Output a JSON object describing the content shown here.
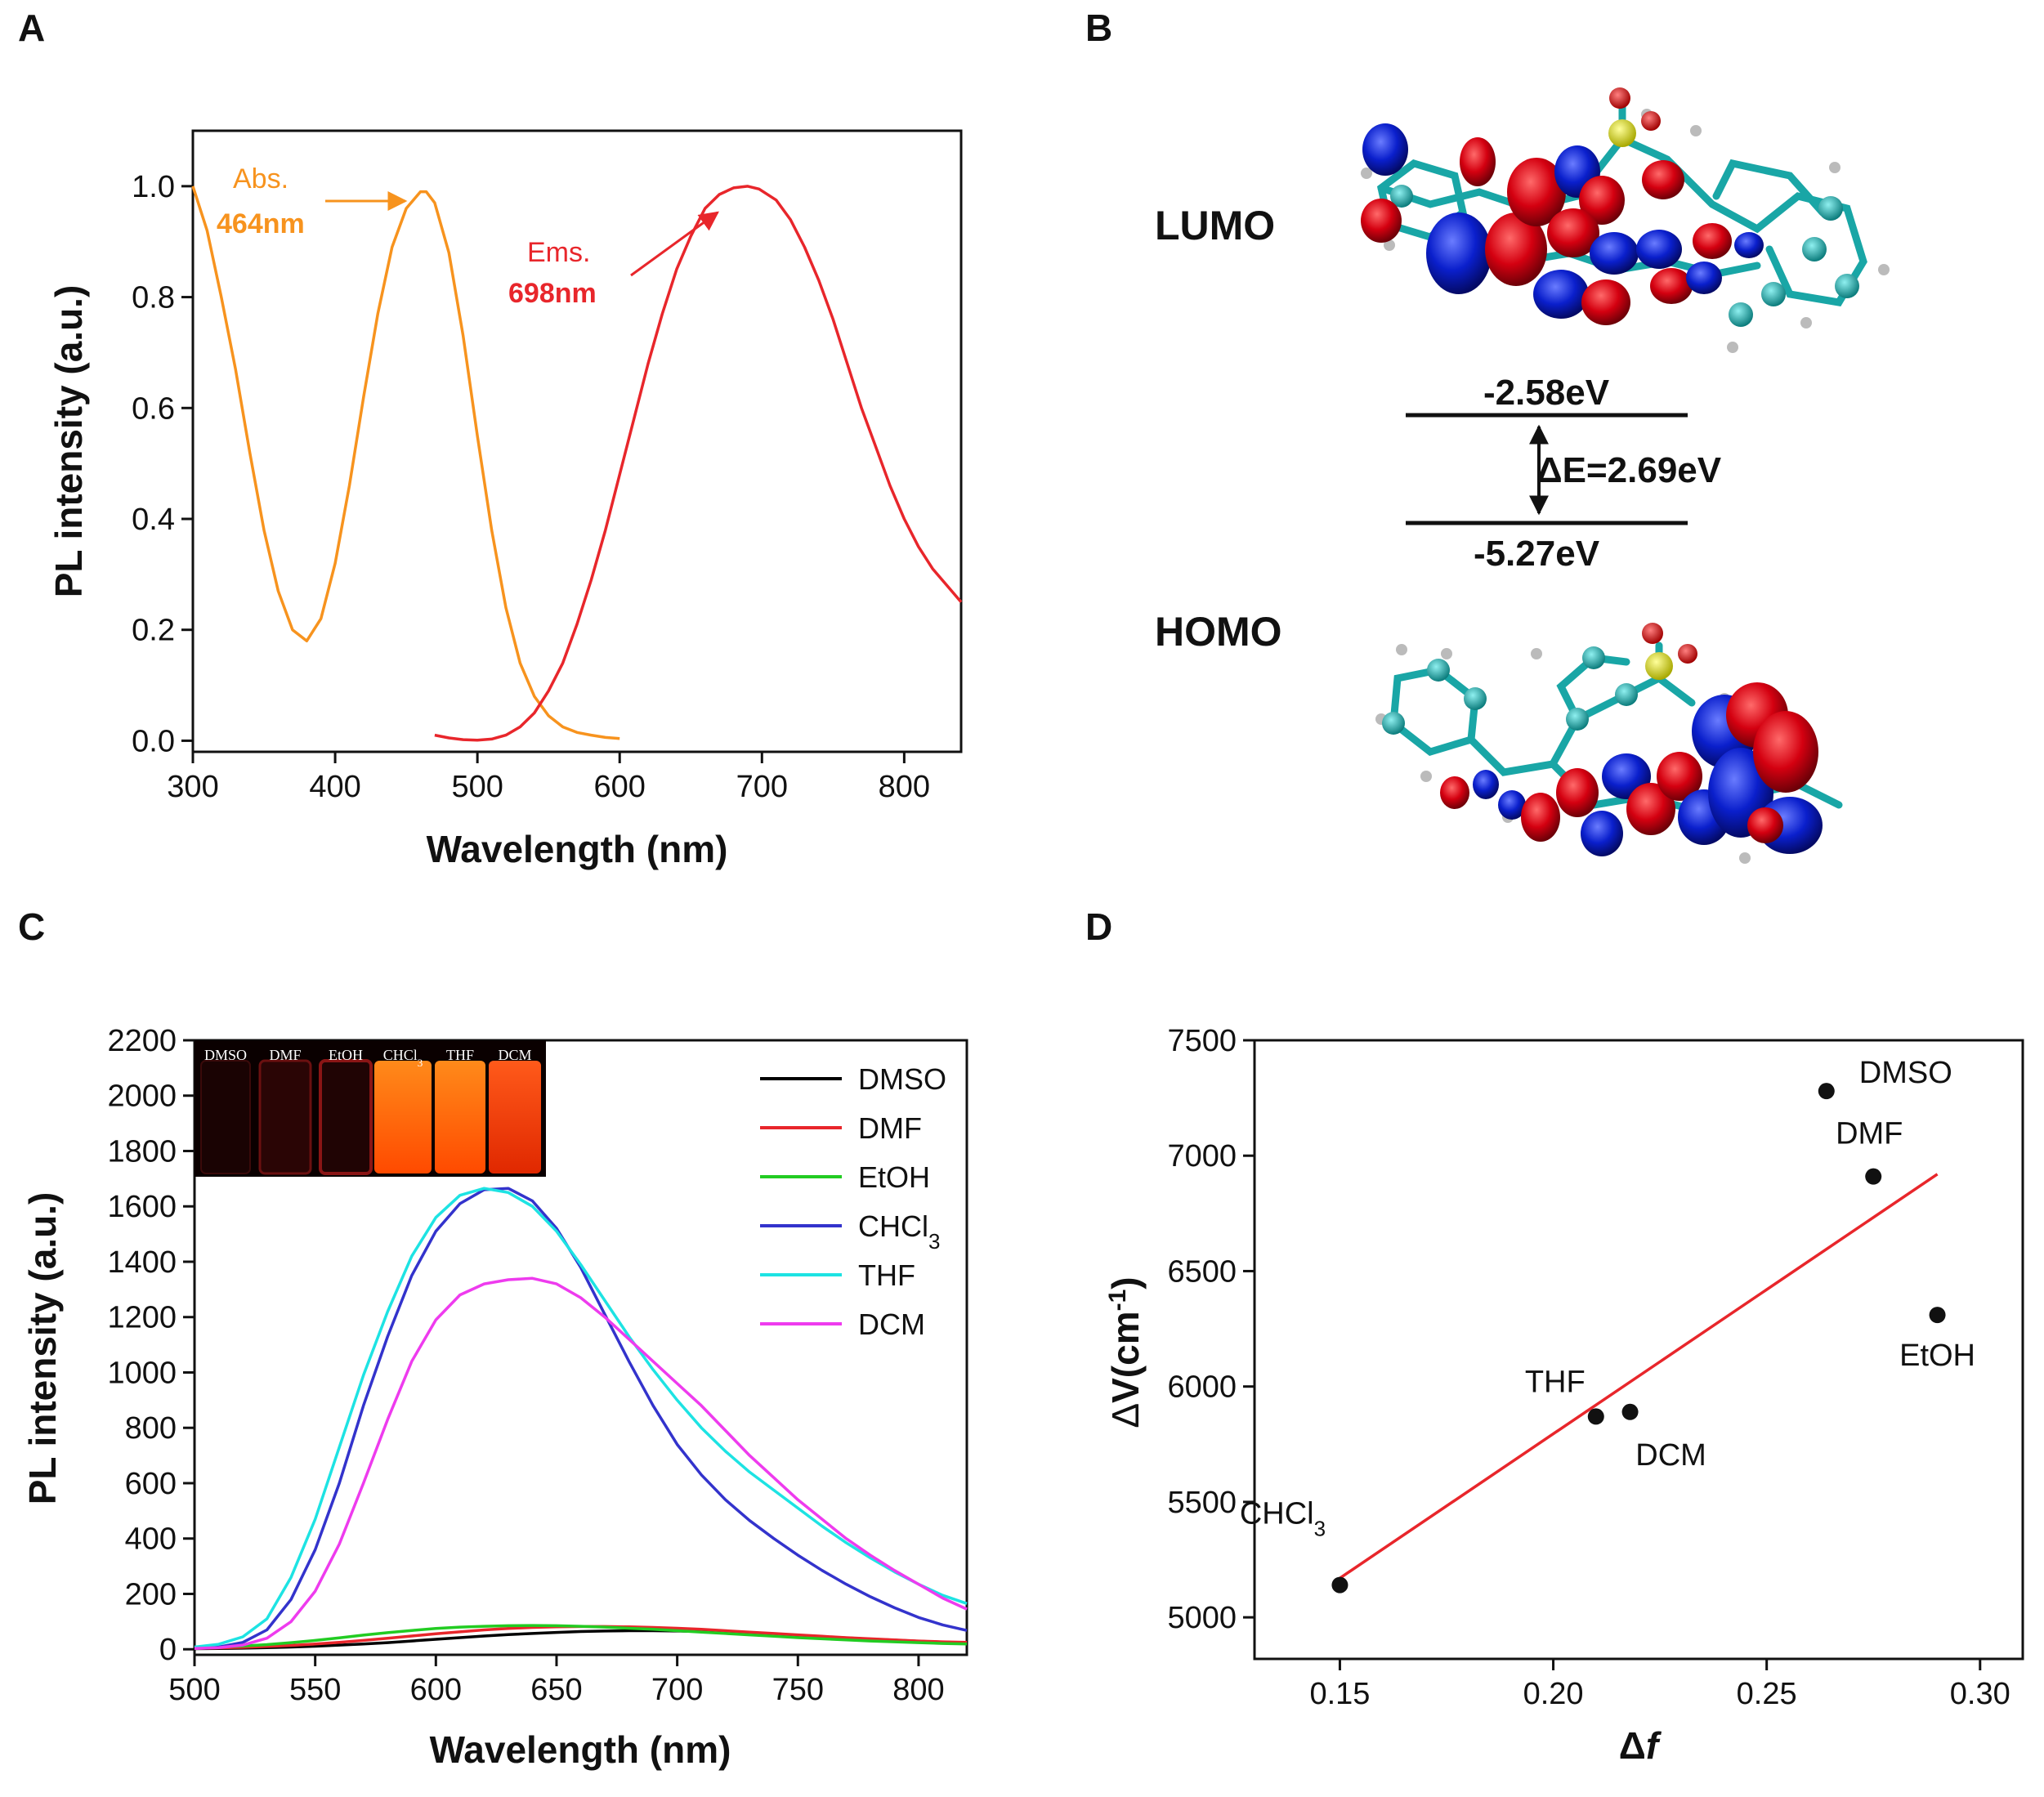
{
  "panels": {
    "A": "A",
    "B": "B",
    "C": "C",
    "D": "D"
  },
  "colors": {
    "abs": "#F7931E",
    "ems": "#E8262B",
    "fit": "#E8262B",
    "DMSO": "#000000",
    "DMF": "#E8262B",
    "EtOH": "#22CC22",
    "CHCl3": "#3333CC",
    "THF": "#1DE3E3",
    "DCM": "#EE3BEE",
    "lobe_pos": "#D40010",
    "lobe_neg": "#0A1FCC",
    "carbon": "#19A6A6",
    "sulfur": "#E6E600"
  },
  "chart_data": [
    {
      "id": "A",
      "type": "line",
      "xlabel": "Wavelength (nm)",
      "ylabel": "PL intensity (a.u.)",
      "xlim": [
        300,
        840
      ],
      "ylim": [
        -0.02,
        1.1
      ],
      "xticks": [
        300,
        400,
        500,
        600,
        700,
        800
      ],
      "yticks": [
        0.0,
        0.2,
        0.4,
        0.6,
        0.8,
        1.0
      ],
      "series": [
        {
          "name": "Abs.",
          "x": [
            300,
            310,
            320,
            330,
            340,
            350,
            360,
            370,
            380,
            390,
            400,
            410,
            420,
            430,
            440,
            450,
            460,
            464,
            470,
            480,
            490,
            500,
            510,
            520,
            530,
            540,
            550,
            560,
            570,
            580,
            590,
            600
          ],
          "y": [
            1.0,
            0.92,
            0.8,
            0.67,
            0.52,
            0.38,
            0.27,
            0.2,
            0.18,
            0.22,
            0.32,
            0.46,
            0.62,
            0.77,
            0.89,
            0.96,
            0.99,
            0.99,
            0.97,
            0.88,
            0.73,
            0.55,
            0.38,
            0.24,
            0.14,
            0.08,
            0.045,
            0.025,
            0.015,
            0.01,
            0.006,
            0.004
          ]
        },
        {
          "name": "Ems.",
          "x": [
            470,
            480,
            490,
            500,
            510,
            520,
            530,
            540,
            550,
            560,
            570,
            580,
            590,
            600,
            610,
            620,
            630,
            640,
            650,
            660,
            670,
            680,
            690,
            698,
            710,
            720,
            730,
            740,
            750,
            760,
            770,
            780,
            790,
            800,
            810,
            820,
            830,
            840
          ],
          "y": [
            0.01,
            0.005,
            0.002,
            0.001,
            0.003,
            0.01,
            0.025,
            0.05,
            0.09,
            0.14,
            0.21,
            0.29,
            0.38,
            0.48,
            0.58,
            0.68,
            0.77,
            0.85,
            0.91,
            0.96,
            0.985,
            0.997,
            1.0,
            0.995,
            0.975,
            0.94,
            0.89,
            0.83,
            0.76,
            0.68,
            0.6,
            0.53,
            0.46,
            0.4,
            0.35,
            0.31,
            0.28,
            0.25
          ]
        }
      ],
      "annotations": {
        "abs_label": "Abs.",
        "abs_value": "464nm",
        "ems_label": "Ems.",
        "ems_value": "698nm"
      }
    },
    {
      "id": "C",
      "type": "line",
      "xlabel": "Wavelength (nm)",
      "ylabel": "PL intensity (a.u.)",
      "xlim": [
        500,
        820
      ],
      "ylim": [
        -20,
        2200
      ],
      "xticks": [
        500,
        550,
        600,
        650,
        700,
        750,
        800
      ],
      "yticks": [
        0,
        200,
        400,
        600,
        800,
        1000,
        1200,
        1400,
        1600,
        1800,
        2000,
        2200
      ],
      "legend": [
        "DMSO",
        "DMF",
        "EtOH",
        "CHCl3",
        "THF",
        "DCM"
      ],
      "legend_display": [
        "DMSO",
        "DMF",
        "EtOH",
        "CHCl",
        "THF",
        "DCM"
      ],
      "legend_sub": "3",
      "x": [
        500,
        510,
        520,
        530,
        540,
        550,
        560,
        570,
        580,
        590,
        600,
        610,
        620,
        630,
        640,
        650,
        660,
        670,
        680,
        690,
        700,
        710,
        720,
        730,
        740,
        750,
        760,
        770,
        780,
        790,
        800,
        810,
        820
      ],
      "series": [
        {
          "name": "DMSO",
          "values": [
            2,
            3,
            4,
            6,
            8,
            11,
            15,
            19,
            24,
            30,
            36,
            42,
            48,
            53,
            57,
            61,
            64,
            66,
            67,
            67,
            66,
            64,
            61,
            57,
            53,
            49,
            45,
            41,
            37,
            33,
            29,
            26,
            23
          ]
        },
        {
          "name": "DMF",
          "values": [
            3,
            5,
            7,
            10,
            14,
            19,
            25,
            32,
            40,
            48,
            56,
            63,
            70,
            75,
            79,
            81,
            82,
            82,
            81,
            79,
            76,
            72,
            67,
            62,
            57,
            52,
            47,
            42,
            38,
            34,
            30,
            27,
            25
          ]
        },
        {
          "name": "EtOH",
          "values": [
            5,
            8,
            12,
            17,
            24,
            32,
            41,
            51,
            60,
            68,
            75,
            80,
            83,
            85,
            86,
            85,
            83,
            80,
            76,
            72,
            67,
            62,
            57,
            52,
            47,
            42,
            38,
            34,
            30,
            27,
            24,
            21,
            19
          ]
        },
        {
          "name": "CHCl3",
          "values": [
            3,
            8,
            25,
            70,
            180,
            360,
            600,
            880,
            1130,
            1350,
            1510,
            1610,
            1660,
            1665,
            1620,
            1520,
            1380,
            1210,
            1040,
            880,
            740,
            630,
            540,
            465,
            400,
            340,
            285,
            235,
            190,
            150,
            115,
            88,
            68
          ]
        },
        {
          "name": "THF",
          "values": [
            8,
            18,
            45,
            110,
            260,
            470,
            730,
            990,
            1220,
            1420,
            1560,
            1640,
            1665,
            1650,
            1600,
            1510,
            1390,
            1260,
            1130,
            1010,
            900,
            800,
            715,
            640,
            575,
            510,
            445,
            385,
            330,
            280,
            235,
            195,
            165
          ]
        },
        {
          "name": "DCM",
          "values": [
            3,
            6,
            15,
            40,
            100,
            210,
            380,
            600,
            830,
            1040,
            1190,
            1280,
            1320,
            1335,
            1340,
            1320,
            1270,
            1200,
            1120,
            1040,
            960,
            880,
            790,
            700,
            620,
            540,
            470,
            400,
            340,
            285,
            235,
            185,
            145
          ]
        }
      ],
      "inset": {
        "labels": [
          "DMSO",
          "DMF",
          "EtOH",
          "CHCl",
          "THF",
          "DCM"
        ],
        "sub": "3"
      }
    },
    {
      "id": "D",
      "type": "scatter",
      "xlabel_sym": "Δ",
      "xlabel_var": "f",
      "ylabel_sym": "Δ",
      "ylabel_text": "V(cm",
      "ylabel_sup": "-1",
      "ylabel_close": ")",
      "xlim": [
        0.13,
        0.31
      ],
      "ylim": [
        4820,
        7500
      ],
      "xticks": [
        0.15,
        0.2,
        0.25,
        0.3
      ],
      "xtick_labels": [
        "0.15",
        "0.20",
        "0.25",
        "0.30"
      ],
      "yticks": [
        5000,
        5500,
        6000,
        6500,
        7000,
        7500
      ],
      "points": [
        {
          "label": "CHCl",
          "sub": "3",
          "x": 0.15,
          "y": 5140
        },
        {
          "label": "THF",
          "sub": "",
          "x": 0.21,
          "y": 5870
        },
        {
          "label": "DCM",
          "sub": "",
          "x": 0.218,
          "y": 5890
        },
        {
          "label": "DMSO",
          "sub": "",
          "x": 0.264,
          "y": 7280
        },
        {
          "label": "DMF",
          "sub": "",
          "x": 0.275,
          "y": 6910
        },
        {
          "label": "EtOH",
          "sub": "",
          "x": 0.29,
          "y": 6310
        }
      ],
      "fit": {
        "x": [
          0.15,
          0.29
        ],
        "y": [
          5170,
          6920
        ]
      }
    }
  ],
  "orbitals": {
    "lumo_label": "LUMO",
    "homo_label": "HOMO",
    "lumo_energy": "-2.58eV",
    "homo_energy": "-5.27eV",
    "gap": "ΔE=2.69eV"
  }
}
